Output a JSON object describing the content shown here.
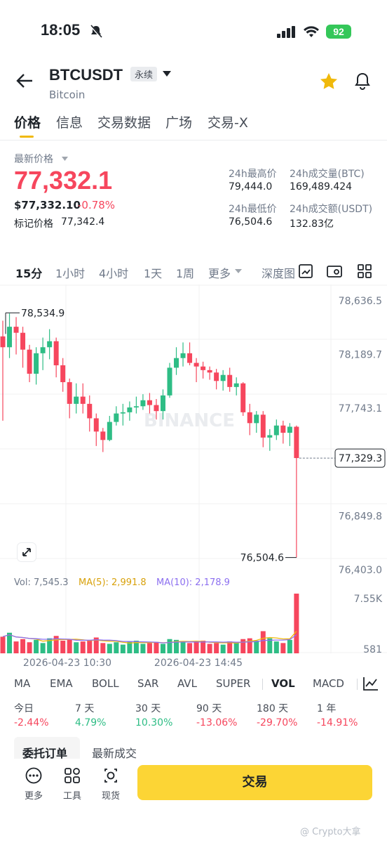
{
  "status_bar": {
    "time": "18:05",
    "battery": "92"
  },
  "header": {
    "symbol": "BTCUSDT",
    "contract_type": "永续",
    "name": "Bitcoin"
  },
  "tabs": [
    "价格",
    "信息",
    "交易数据",
    "广场",
    "交易-X"
  ],
  "price_panel": {
    "latest_label": "最新价格",
    "price": "77,332.1",
    "usd_price": "$77,332.10",
    "change": "-0.78%",
    "mark_label": "标记价格",
    "mark_price": "77,342.4",
    "high_label": "24h最高价",
    "high": "79,444.0",
    "vol_btc_label": "24h成交量(BTC)",
    "vol_btc": "169,489.424",
    "low_label": "24h最低价",
    "low": "76,504.6",
    "vol_usdt_label": "24h成交额(USDT)",
    "vol_usdt": "132.83亿"
  },
  "intervals": [
    "15分",
    "1小时",
    "4小时",
    "1天",
    "1周",
    "更多",
    "深度图"
  ],
  "chart_data": {
    "type": "candlestick",
    "y_ticks": [
      "78,636.5",
      "78,189.7",
      "77,743.1",
      "77,329.3",
      "76,849.8",
      "76,403.0"
    ],
    "ylim": [
      76403.0,
      78636.5
    ],
    "current_price_tag": "77,329.3",
    "max_label": "78,534.9",
    "min_label": "76,504.6",
    "x_ticks": [
      "2026-04-23 10:30",
      "2026-04-23 14:45"
    ],
    "watermark": "BINANCE",
    "candles": [
      {
        "o": 78340,
        "h": 78470,
        "l": 77640,
        "c": 78250
      },
      {
        "o": 78250,
        "h": 78530,
        "l": 78160,
        "c": 78420
      },
      {
        "o": 78420,
        "h": 78500,
        "l": 78190,
        "c": 78370
      },
      {
        "o": 78370,
        "h": 78420,
        "l": 78080,
        "c": 78230
      },
      {
        "o": 78230,
        "h": 78270,
        "l": 77960,
        "c": 78030
      },
      {
        "o": 78030,
        "h": 78250,
        "l": 77940,
        "c": 78200
      },
      {
        "o": 78200,
        "h": 78330,
        "l": 78060,
        "c": 78250
      },
      {
        "o": 78250,
        "h": 78400,
        "l": 78150,
        "c": 78300
      },
      {
        "o": 78300,
        "h": 78330,
        "l": 78000,
        "c": 78100
      },
      {
        "o": 78100,
        "h": 78160,
        "l": 77880,
        "c": 77960
      },
      {
        "o": 77960,
        "h": 77990,
        "l": 77660,
        "c": 77780
      },
      {
        "o": 77780,
        "h": 77950,
        "l": 77700,
        "c": 77840
      },
      {
        "o": 77840,
        "h": 77950,
        "l": 77700,
        "c": 77780
      },
      {
        "o": 77780,
        "h": 77850,
        "l": 77550,
        "c": 77660
      },
      {
        "o": 77660,
        "h": 77700,
        "l": 77430,
        "c": 77550
      },
      {
        "o": 77550,
        "h": 77580,
        "l": 77380,
        "c": 77480
      },
      {
        "o": 77480,
        "h": 77680,
        "l": 77470,
        "c": 77630
      },
      {
        "o": 77630,
        "h": 77760,
        "l": 77600,
        "c": 77700
      },
      {
        "o": 77700,
        "h": 77780,
        "l": 77600,
        "c": 77710
      },
      {
        "o": 77710,
        "h": 77800,
        "l": 77640,
        "c": 77750
      },
      {
        "o": 77750,
        "h": 77840,
        "l": 77700,
        "c": 77760
      },
      {
        "o": 77760,
        "h": 77860,
        "l": 77730,
        "c": 77810
      },
      {
        "o": 77810,
        "h": 77870,
        "l": 77700,
        "c": 77770
      },
      {
        "o": 77770,
        "h": 77820,
        "l": 77650,
        "c": 77720
      },
      {
        "o": 77720,
        "h": 77900,
        "l": 77650,
        "c": 77850
      },
      {
        "o": 77850,
        "h": 78120,
        "l": 77830,
        "c": 78080
      },
      {
        "o": 78080,
        "h": 78250,
        "l": 78020,
        "c": 78160
      },
      {
        "o": 78160,
        "h": 78290,
        "l": 78090,
        "c": 78200
      },
      {
        "o": 78200,
        "h": 78290,
        "l": 78100,
        "c": 78120
      },
      {
        "o": 78120,
        "h": 78160,
        "l": 77960,
        "c": 78090
      },
      {
        "o": 78090,
        "h": 78130,
        "l": 77990,
        "c": 78060
      },
      {
        "o": 78060,
        "h": 78090,
        "l": 77980,
        "c": 78040
      },
      {
        "o": 78040,
        "h": 78070,
        "l": 77900,
        "c": 77970
      },
      {
        "o": 77970,
        "h": 78060,
        "l": 77890,
        "c": 78020
      },
      {
        "o": 78020,
        "h": 78080,
        "l": 77880,
        "c": 77920
      },
      {
        "o": 77920,
        "h": 78000,
        "l": 77850,
        "c": 77950
      },
      {
        "o": 77950,
        "h": 77960,
        "l": 77680,
        "c": 77710
      },
      {
        "o": 77710,
        "h": 77780,
        "l": 77520,
        "c": 77620
      },
      {
        "o": 77620,
        "h": 77720,
        "l": 77540,
        "c": 77690
      },
      {
        "o": 77690,
        "h": 77720,
        "l": 77420,
        "c": 77500
      },
      {
        "o": 77500,
        "h": 77570,
        "l": 77390,
        "c": 77520
      },
      {
        "o": 77520,
        "h": 77650,
        "l": 77480,
        "c": 77600
      },
      {
        "o": 77600,
        "h": 77640,
        "l": 77450,
        "c": 77540
      },
      {
        "o": 77540,
        "h": 77620,
        "l": 77430,
        "c": 77590
      },
      {
        "o": 77590,
        "h": 77600,
        "l": 76505,
        "c": 77330
      }
    ]
  },
  "volume": {
    "vol_label": "Vol: 7,545.3",
    "ma5_label": "MA(5): 2,991.8",
    "ma10_label": "MA(10): 2,178.9",
    "ticks": [
      "7.55K",
      "581"
    ],
    "max": 7545.3,
    "bars": [
      2100,
      2600,
      1500,
      1800,
      1400,
      1700,
      1300,
      1900,
      2200,
      1600,
      1800,
      1400,
      1500,
      1700,
      2000,
      1300,
      1200,
      1400,
      1100,
      1500,
      1600,
      1200,
      1300,
      1400,
      1200,
      1800,
      1700,
      1500,
      1300,
      1400,
      1600,
      1200,
      1300,
      1100,
      1500,
      1400,
      1800,
      1900,
      1600,
      2800,
      1900,
      1500,
      1300,
      1700,
      7545
    ],
    "colors": {
      "up": "#2ebd85",
      "down": "#f6465d",
      "ma5": "#f0b90b",
      "ma10": "#8c6ff0"
    }
  },
  "indicators": [
    "MA",
    "EMA",
    "BOLL",
    "SAR",
    "AVL",
    "SUPER",
    "VOL",
    "MACD"
  ],
  "performance": [
    {
      "label": "今日",
      "value": "-2.44%"
    },
    {
      "label": "7 天",
      "value": "4.79%"
    },
    {
      "label": "30 天",
      "value": "10.30%"
    },
    {
      "label": "90 天",
      "value": "-13.06%"
    },
    {
      "label": "180 天",
      "value": "-29.70%"
    },
    {
      "label": "1 年",
      "value": "-14.91%"
    }
  ],
  "bottom_tabs": [
    "委托订单",
    "最新成交"
  ],
  "toolbar": {
    "more": "更多",
    "tools": "工具",
    "spot": "现货",
    "trade": "交易"
  },
  "footer_watermark": "@ Crypto大拿"
}
